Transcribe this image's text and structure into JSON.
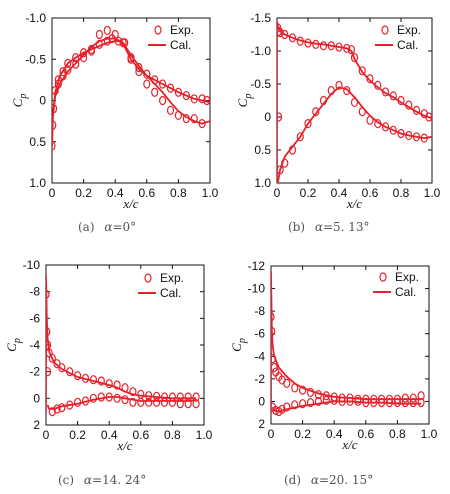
{
  "colors": {
    "exp": "#e8202a",
    "cal": "#e8202a",
    "axis": "#111111"
  },
  "legend": {
    "exp_label": "Exp.",
    "cal_label": "Cal."
  },
  "chart_data": [
    {
      "type": "line",
      "caption_prefix": "(a) ",
      "caption_greek": "α",
      "caption_value": "=0°",
      "xlabel": "x/c",
      "ylabel_main": "C",
      "ylabel_sub": "p",
      "xlim": [
        0,
        1.0
      ],
      "ylim": [
        1.0,
        -1.0
      ],
      "xticks": [
        "0",
        "0.2",
        "0.4",
        "0.6",
        "0.8",
        "1.0"
      ],
      "yticks": [
        "-1.0",
        "-0.5",
        "0",
        "0.5",
        "1.0"
      ],
      "series": [
        {
          "name": "Cal.",
          "kind": "line",
          "x": [
            0.0,
            0.005,
            0.02,
            0.05,
            0.1,
            0.15,
            0.2,
            0.25,
            0.3,
            0.35,
            0.4,
            0.43,
            0.46,
            0.5,
            0.55,
            0.6,
            0.65,
            0.7,
            0.75,
            0.8,
            0.85,
            0.9,
            0.95,
            1.0
          ],
          "y": [
            0.55,
            0.2,
            -0.1,
            -0.3,
            -0.45,
            -0.52,
            -0.58,
            -0.62,
            -0.66,
            -0.7,
            -0.72,
            -0.72,
            -0.65,
            -0.5,
            -0.38,
            -0.3,
            -0.25,
            -0.2,
            -0.15,
            -0.1,
            -0.06,
            -0.02,
            0.0,
            0.02
          ]
        },
        {
          "name": "Cal.",
          "kind": "line",
          "x": [
            0.0,
            0.005,
            0.02,
            0.05,
            0.1,
            0.15,
            0.2,
            0.25,
            0.3,
            0.35,
            0.4,
            0.45,
            0.5,
            0.55,
            0.6,
            0.65,
            0.7,
            0.75,
            0.8,
            0.85,
            0.9,
            0.95,
            1.0
          ],
          "y": [
            0.55,
            0.2,
            -0.05,
            -0.2,
            -0.35,
            -0.45,
            -0.55,
            -0.65,
            -0.72,
            -0.75,
            -0.75,
            -0.7,
            -0.55,
            -0.42,
            -0.3,
            -0.2,
            -0.1,
            0.02,
            0.13,
            0.2,
            0.25,
            0.28,
            0.25
          ]
        },
        {
          "name": "Exp.",
          "kind": "markers",
          "x": [
            0.0,
            0.005,
            0.01,
            0.02,
            0.04,
            0.07,
            0.1,
            0.15,
            0.2,
            0.25,
            0.3,
            0.35,
            0.38,
            0.42,
            0.46,
            0.5,
            0.55,
            0.6,
            0.65,
            0.7,
            0.75,
            0.8,
            0.85,
            0.9,
            0.95,
            0.98,
            0.04,
            0.07,
            0.1,
            0.15,
            0.2,
            0.25,
            0.3,
            0.35,
            0.4,
            0.45,
            0.5,
            0.55,
            0.6,
            0.65,
            0.7,
            0.75,
            0.8,
            0.85,
            0.9,
            0.95
          ],
          "y": [
            0.55,
            0.3,
            0.1,
            -0.12,
            -0.25,
            -0.35,
            -0.45,
            -0.52,
            -0.58,
            -0.62,
            -0.68,
            -0.72,
            -0.75,
            -0.72,
            -0.7,
            -0.52,
            -0.4,
            -0.32,
            -0.25,
            -0.2,
            -0.15,
            -0.1,
            -0.06,
            -0.02,
            -0.02,
            0.0,
            -0.2,
            -0.3,
            -0.37,
            -0.44,
            -0.52,
            -0.6,
            -0.8,
            -0.85,
            -0.8,
            -0.7,
            -0.5,
            -0.35,
            -0.2,
            -0.1,
            0.0,
            0.12,
            0.18,
            0.22,
            0.22,
            0.28
          ]
        }
      ]
    },
    {
      "type": "line",
      "caption_prefix": "(b) ",
      "caption_greek": "α",
      "caption_value": "=5. 13°",
      "xlabel": "x/c",
      "ylabel_main": "C",
      "ylabel_sub": "p",
      "xlim": [
        0,
        1.0
      ],
      "ylim": [
        1.0,
        -1.5
      ],
      "xticks": [
        "0",
        "0.2",
        "0.4",
        "0.6",
        "0.8",
        "1.0"
      ],
      "yticks": [
        "-1.5",
        "-1.0",
        "-0.5",
        "0",
        "0.5",
        "1.0"
      ],
      "series": [
        {
          "name": "Cal.",
          "kind": "line",
          "x": [
            0.0,
            0.0,
            0.005,
            0.02,
            0.05,
            0.1,
            0.15,
            0.2,
            0.25,
            0.3,
            0.35,
            0.4,
            0.45,
            0.48,
            0.5,
            0.55,
            0.6,
            0.65,
            0.7,
            0.75,
            0.8,
            0.85,
            0.9,
            0.95,
            1.0
          ],
          "y": [
            1.0,
            -1.45,
            -1.38,
            -1.3,
            -1.25,
            -1.2,
            -1.16,
            -1.13,
            -1.11,
            -1.1,
            -1.08,
            -1.06,
            -1.04,
            -1.0,
            -0.88,
            -0.68,
            -0.55,
            -0.45,
            -0.36,
            -0.3,
            -0.22,
            -0.15,
            -0.08,
            -0.02,
            0.02
          ]
        },
        {
          "name": "Cal.",
          "kind": "line",
          "x": [
            0.005,
            0.02,
            0.05,
            0.1,
            0.15,
            0.2,
            0.25,
            0.3,
            0.35,
            0.4,
            0.45,
            0.5,
            0.55,
            0.6,
            0.65,
            0.7,
            0.75,
            0.8,
            0.85,
            0.9,
            0.95,
            1.0
          ],
          "y": [
            1.0,
            0.8,
            0.6,
            0.45,
            0.3,
            0.1,
            -0.05,
            -0.2,
            -0.35,
            -0.45,
            -0.42,
            -0.3,
            -0.15,
            -0.02,
            0.08,
            0.15,
            0.2,
            0.25,
            0.28,
            0.3,
            0.32,
            0.3
          ]
        },
        {
          "name": "Exp.",
          "kind": "markers",
          "x": [
            0.005,
            0.01,
            0.02,
            0.05,
            0.1,
            0.15,
            0.2,
            0.25,
            0.3,
            0.35,
            0.4,
            0.45,
            0.48,
            0.5,
            0.55,
            0.6,
            0.65,
            0.7,
            0.75,
            0.8,
            0.85,
            0.9,
            0.95,
            0.98,
            0.01,
            0.02,
            0.05,
            0.1,
            0.15,
            0.2,
            0.25,
            0.3,
            0.35,
            0.4,
            0.45,
            0.5,
            0.55,
            0.6,
            0.65,
            0.7,
            0.75,
            0.8,
            0.85,
            0.9,
            0.95
          ],
          "y": [
            -1.35,
            -1.3,
            -1.28,
            -1.25,
            -1.2,
            -1.15,
            -1.12,
            -1.1,
            -1.08,
            -1.08,
            -1.06,
            -1.04,
            -1.02,
            -0.9,
            -0.7,
            -0.58,
            -0.48,
            -0.38,
            -0.32,
            -0.25,
            -0.18,
            -0.1,
            -0.05,
            0.0,
            0.0,
            0.8,
            0.7,
            0.5,
            0.3,
            0.1,
            -0.08,
            -0.25,
            -0.4,
            -0.48,
            -0.4,
            -0.22,
            -0.08,
            0.05,
            0.1,
            0.15,
            0.2,
            0.25,
            0.28,
            0.3,
            0.32
          ]
        }
      ]
    },
    {
      "type": "line",
      "caption_prefix": "(c) ",
      "caption_greek": "α",
      "caption_value": "=14. 24°",
      "xlabel": "x/c",
      "ylabel_main": "C",
      "ylabel_sub": "p",
      "xlim": [
        0,
        1.0
      ],
      "ylim": [
        2,
        -10
      ],
      "xticks": [
        "0",
        "0.2",
        "0.4",
        "0.6",
        "0.8",
        "1.0"
      ],
      "yticks": [
        "-10",
        "-8",
        "-6",
        "-4",
        "-2",
        "0",
        "2"
      ],
      "series": [
        {
          "name": "Cal.",
          "kind": "line",
          "x": [
            0.0,
            0.0,
            0.005,
            0.01,
            0.02,
            0.05,
            0.1,
            0.15,
            0.2,
            0.3,
            0.4,
            0.45,
            0.5,
            0.55,
            0.6,
            0.7,
            0.8,
            0.9,
            0.95
          ],
          "y": [
            1.0,
            -9.2,
            -6.0,
            -4.5,
            -3.5,
            -2.7,
            -2.2,
            -1.9,
            -1.6,
            -1.3,
            -1.0,
            -0.8,
            -0.5,
            -0.3,
            -0.2,
            -0.1,
            0.0,
            0.0,
            0.0
          ]
        },
        {
          "name": "Cal.",
          "kind": "line",
          "x": [
            0.01,
            0.02,
            0.05,
            0.1,
            0.2,
            0.3,
            0.4,
            0.45,
            0.5,
            0.6,
            0.7,
            0.8,
            0.9,
            0.95
          ],
          "y": [
            0.5,
            0.8,
            0.8,
            0.6,
            0.4,
            0.1,
            -0.1,
            -0.1,
            0.0,
            0.2,
            0.2,
            0.2,
            0.2,
            0.15
          ]
        },
        {
          "name": "Exp.",
          "kind": "markers",
          "x": [
            0.0,
            0.005,
            0.01,
            0.02,
            0.04,
            0.07,
            0.1,
            0.15,
            0.2,
            0.25,
            0.3,
            0.35,
            0.4,
            0.45,
            0.5,
            0.55,
            0.6,
            0.65,
            0.7,
            0.75,
            0.8,
            0.85,
            0.9,
            0.95,
            0.01,
            0.04,
            0.07,
            0.1,
            0.15,
            0.2,
            0.25,
            0.3,
            0.35,
            0.4,
            0.45,
            0.5,
            0.55,
            0.6,
            0.65,
            0.7,
            0.75,
            0.8,
            0.85,
            0.9,
            0.95
          ],
          "y": [
            -7.8,
            -5.0,
            -4.0,
            -3.4,
            -3.0,
            -2.6,
            -2.3,
            -2.0,
            -1.7,
            -1.5,
            -1.4,
            -1.3,
            -1.1,
            -1.0,
            -0.8,
            -0.5,
            -0.3,
            -0.2,
            -0.15,
            -0.1,
            -0.1,
            -0.1,
            -0.1,
            -0.1,
            -2.0,
            1.0,
            0.8,
            0.7,
            0.5,
            0.3,
            0.2,
            0.0,
            -0.1,
            -0.1,
            0.0,
            0.1,
            0.3,
            0.3,
            0.3,
            0.3,
            0.3,
            0.3,
            0.4,
            0.4,
            0.4
          ]
        }
      ]
    },
    {
      "type": "line",
      "caption_prefix": "(d) ",
      "caption_greek": "α",
      "caption_value": "=20. 15°",
      "xlabel": "x/c",
      "ylabel_main": "C",
      "ylabel_sub": "p",
      "xlim": [
        0,
        1.0
      ],
      "ylim": [
        2,
        -12
      ],
      "xticks": [
        "0",
        "0.2",
        "0.4",
        "0.6",
        "0.8",
        "1.0"
      ],
      "yticks": [
        "-12",
        "-10",
        "-8",
        "-6",
        "-4",
        "-2",
        "0",
        "2"
      ],
      "series": [
        {
          "name": "Cal.",
          "kind": "line",
          "x": [
            0.0,
            0.0,
            0.005,
            0.01,
            0.02,
            0.05,
            0.1,
            0.15,
            0.2,
            0.3,
            0.4,
            0.5,
            0.6,
            0.7,
            0.8,
            0.9,
            0.95
          ],
          "y": [
            1.0,
            -11.5,
            -6.5,
            -5.0,
            -4.0,
            -3.0,
            -2.2,
            -1.6,
            -1.2,
            -0.7,
            -0.4,
            -0.3,
            -0.2,
            -0.2,
            -0.2,
            -0.2,
            -0.2
          ]
        },
        {
          "name": "Cal.",
          "kind": "line",
          "x": [
            0.01,
            0.02,
            0.05,
            0.1,
            0.2,
            0.3,
            0.4,
            0.5,
            0.6,
            0.7,
            0.8,
            0.9,
            0.95
          ],
          "y": [
            0.5,
            0.8,
            0.9,
            0.7,
            0.4,
            0.2,
            0.0,
            0.0,
            0.1,
            0.1,
            0.2,
            0.2,
            0.2
          ]
        },
        {
          "name": "Exp.",
          "kind": "markers",
          "x": [
            0.0,
            0.005,
            0.01,
            0.02,
            0.03,
            0.05,
            0.07,
            0.1,
            0.15,
            0.2,
            0.25,
            0.3,
            0.35,
            0.4,
            0.45,
            0.5,
            0.55,
            0.6,
            0.65,
            0.7,
            0.75,
            0.8,
            0.85,
            0.9,
            0.95,
            0.01,
            0.03,
            0.05,
            0.07,
            0.1,
            0.15,
            0.2,
            0.25,
            0.3,
            0.35,
            0.4,
            0.45,
            0.5,
            0.55,
            0.6,
            0.65,
            0.7,
            0.75,
            0.8,
            0.85,
            0.9,
            0.95
          ],
          "y": [
            -7.5,
            -6.2,
            -3.8,
            -3.0,
            -2.6,
            -2.2,
            -1.9,
            -1.6,
            -1.2,
            -1.0,
            -0.8,
            -0.6,
            -0.5,
            -0.4,
            -0.3,
            -0.3,
            -0.2,
            -0.2,
            -0.2,
            -0.2,
            -0.2,
            -0.2,
            -0.3,
            -0.3,
            -0.5,
            0.5,
            0.8,
            0.9,
            0.7,
            0.5,
            0.3,
            0.2,
            0.1,
            0.0,
            -0.1,
            -0.1,
            0.0,
            0.0,
            0.0,
            0.1,
            0.1,
            0.1,
            0.1,
            0.1,
            0.1,
            0.1,
            0.1
          ]
        }
      ]
    }
  ]
}
